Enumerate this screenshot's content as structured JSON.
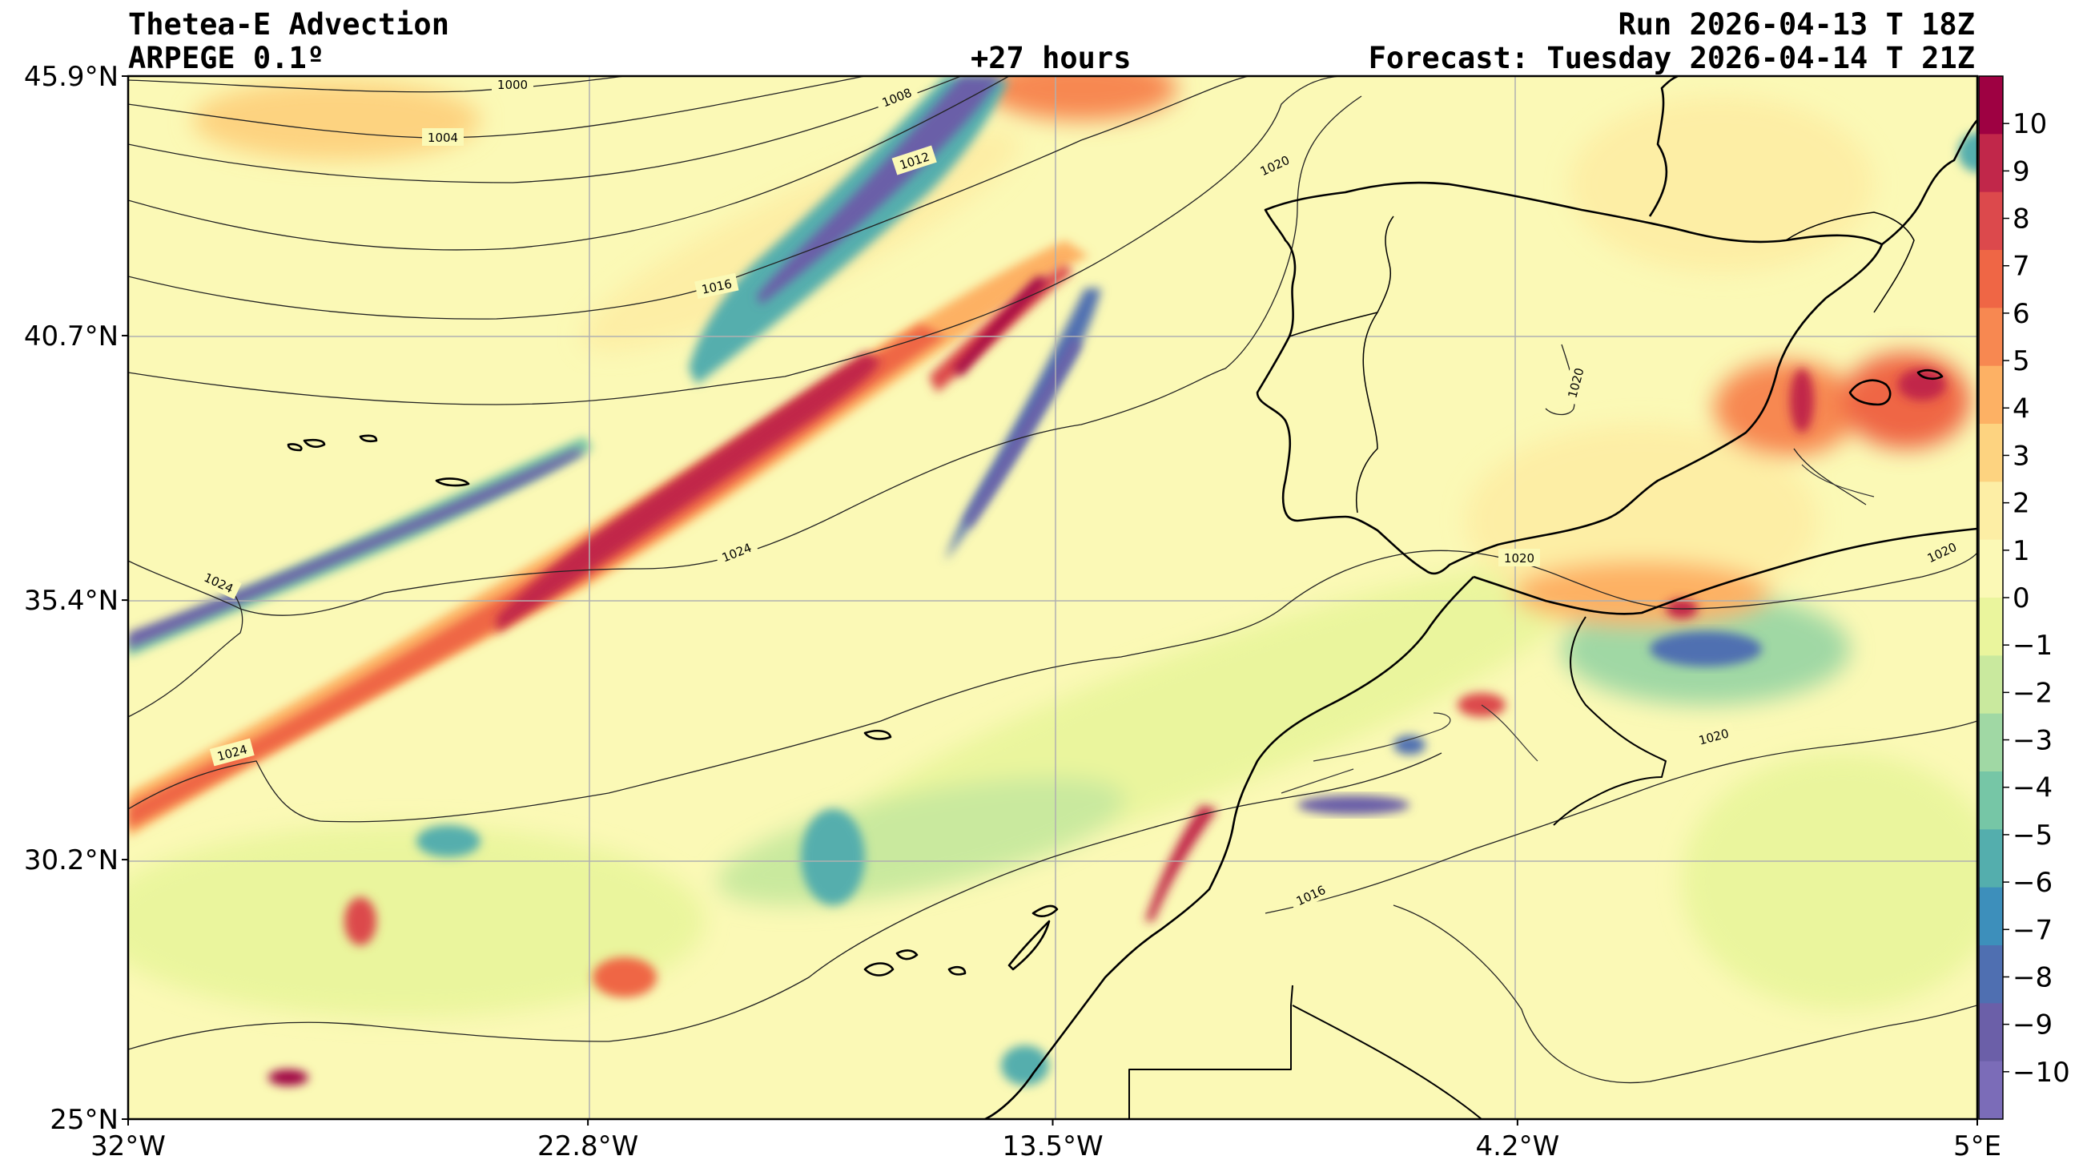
{
  "header": {
    "title": "Thetea-E Advection",
    "model": "ARPEGE 0.1º",
    "lead": "+27 hours",
    "run": "Run 2026-04-13 T 18Z",
    "forecast": "Forecast: Tuesday 2026-04-14 T 21Z"
  },
  "map": {
    "lon_range": [
      -32,
      5
    ],
    "lat_range": [
      25,
      45.9
    ],
    "lon_ticks": [
      {
        "value": -32,
        "label": "32°W"
      },
      {
        "value": -22.8,
        "label": "22.8°W"
      },
      {
        "value": -13.5,
        "label": "13.5°W"
      },
      {
        "value": -4.2,
        "label": "4.2°W"
      },
      {
        "value": 5,
        "label": "5°E"
      }
    ],
    "lat_ticks": [
      {
        "value": 45.9,
        "label": "45.9°N"
      },
      {
        "value": 40.7,
        "label": "40.7°N"
      },
      {
        "value": 35.4,
        "label": "35.4°N"
      },
      {
        "value": 30.2,
        "label": "30.2°N"
      },
      {
        "value": 25,
        "label": "25°N"
      }
    ],
    "isobar_labels": [
      "1000",
      "1004",
      "1008",
      "1012",
      "1016",
      "1020",
      "1024"
    ],
    "background_color": "#fbf9b6",
    "land_outline_color": "#000000"
  },
  "colorbar": {
    "ticks": [
      "10",
      "9",
      "8",
      "7",
      "6",
      "5",
      "4",
      "3",
      "2",
      "1",
      "0",
      "−1",
      "−2",
      "−3",
      "−4",
      "−5",
      "−6",
      "−7",
      "−8",
      "−9",
      "−10"
    ],
    "colors": [
      "#9e0142",
      "#c1274a",
      "#dc494c",
      "#ef6645",
      "#f78851",
      "#fdb164",
      "#fdd380",
      "#fdeea5",
      "#fbf9b6",
      "#eaf59d",
      "#c9e99e",
      "#a0d8a4",
      "#76c6a6",
      "#54aead",
      "#3d8fbb",
      "#4f6fb1",
      "#6b5fa8",
      "#7b6cb8"
    ]
  }
}
